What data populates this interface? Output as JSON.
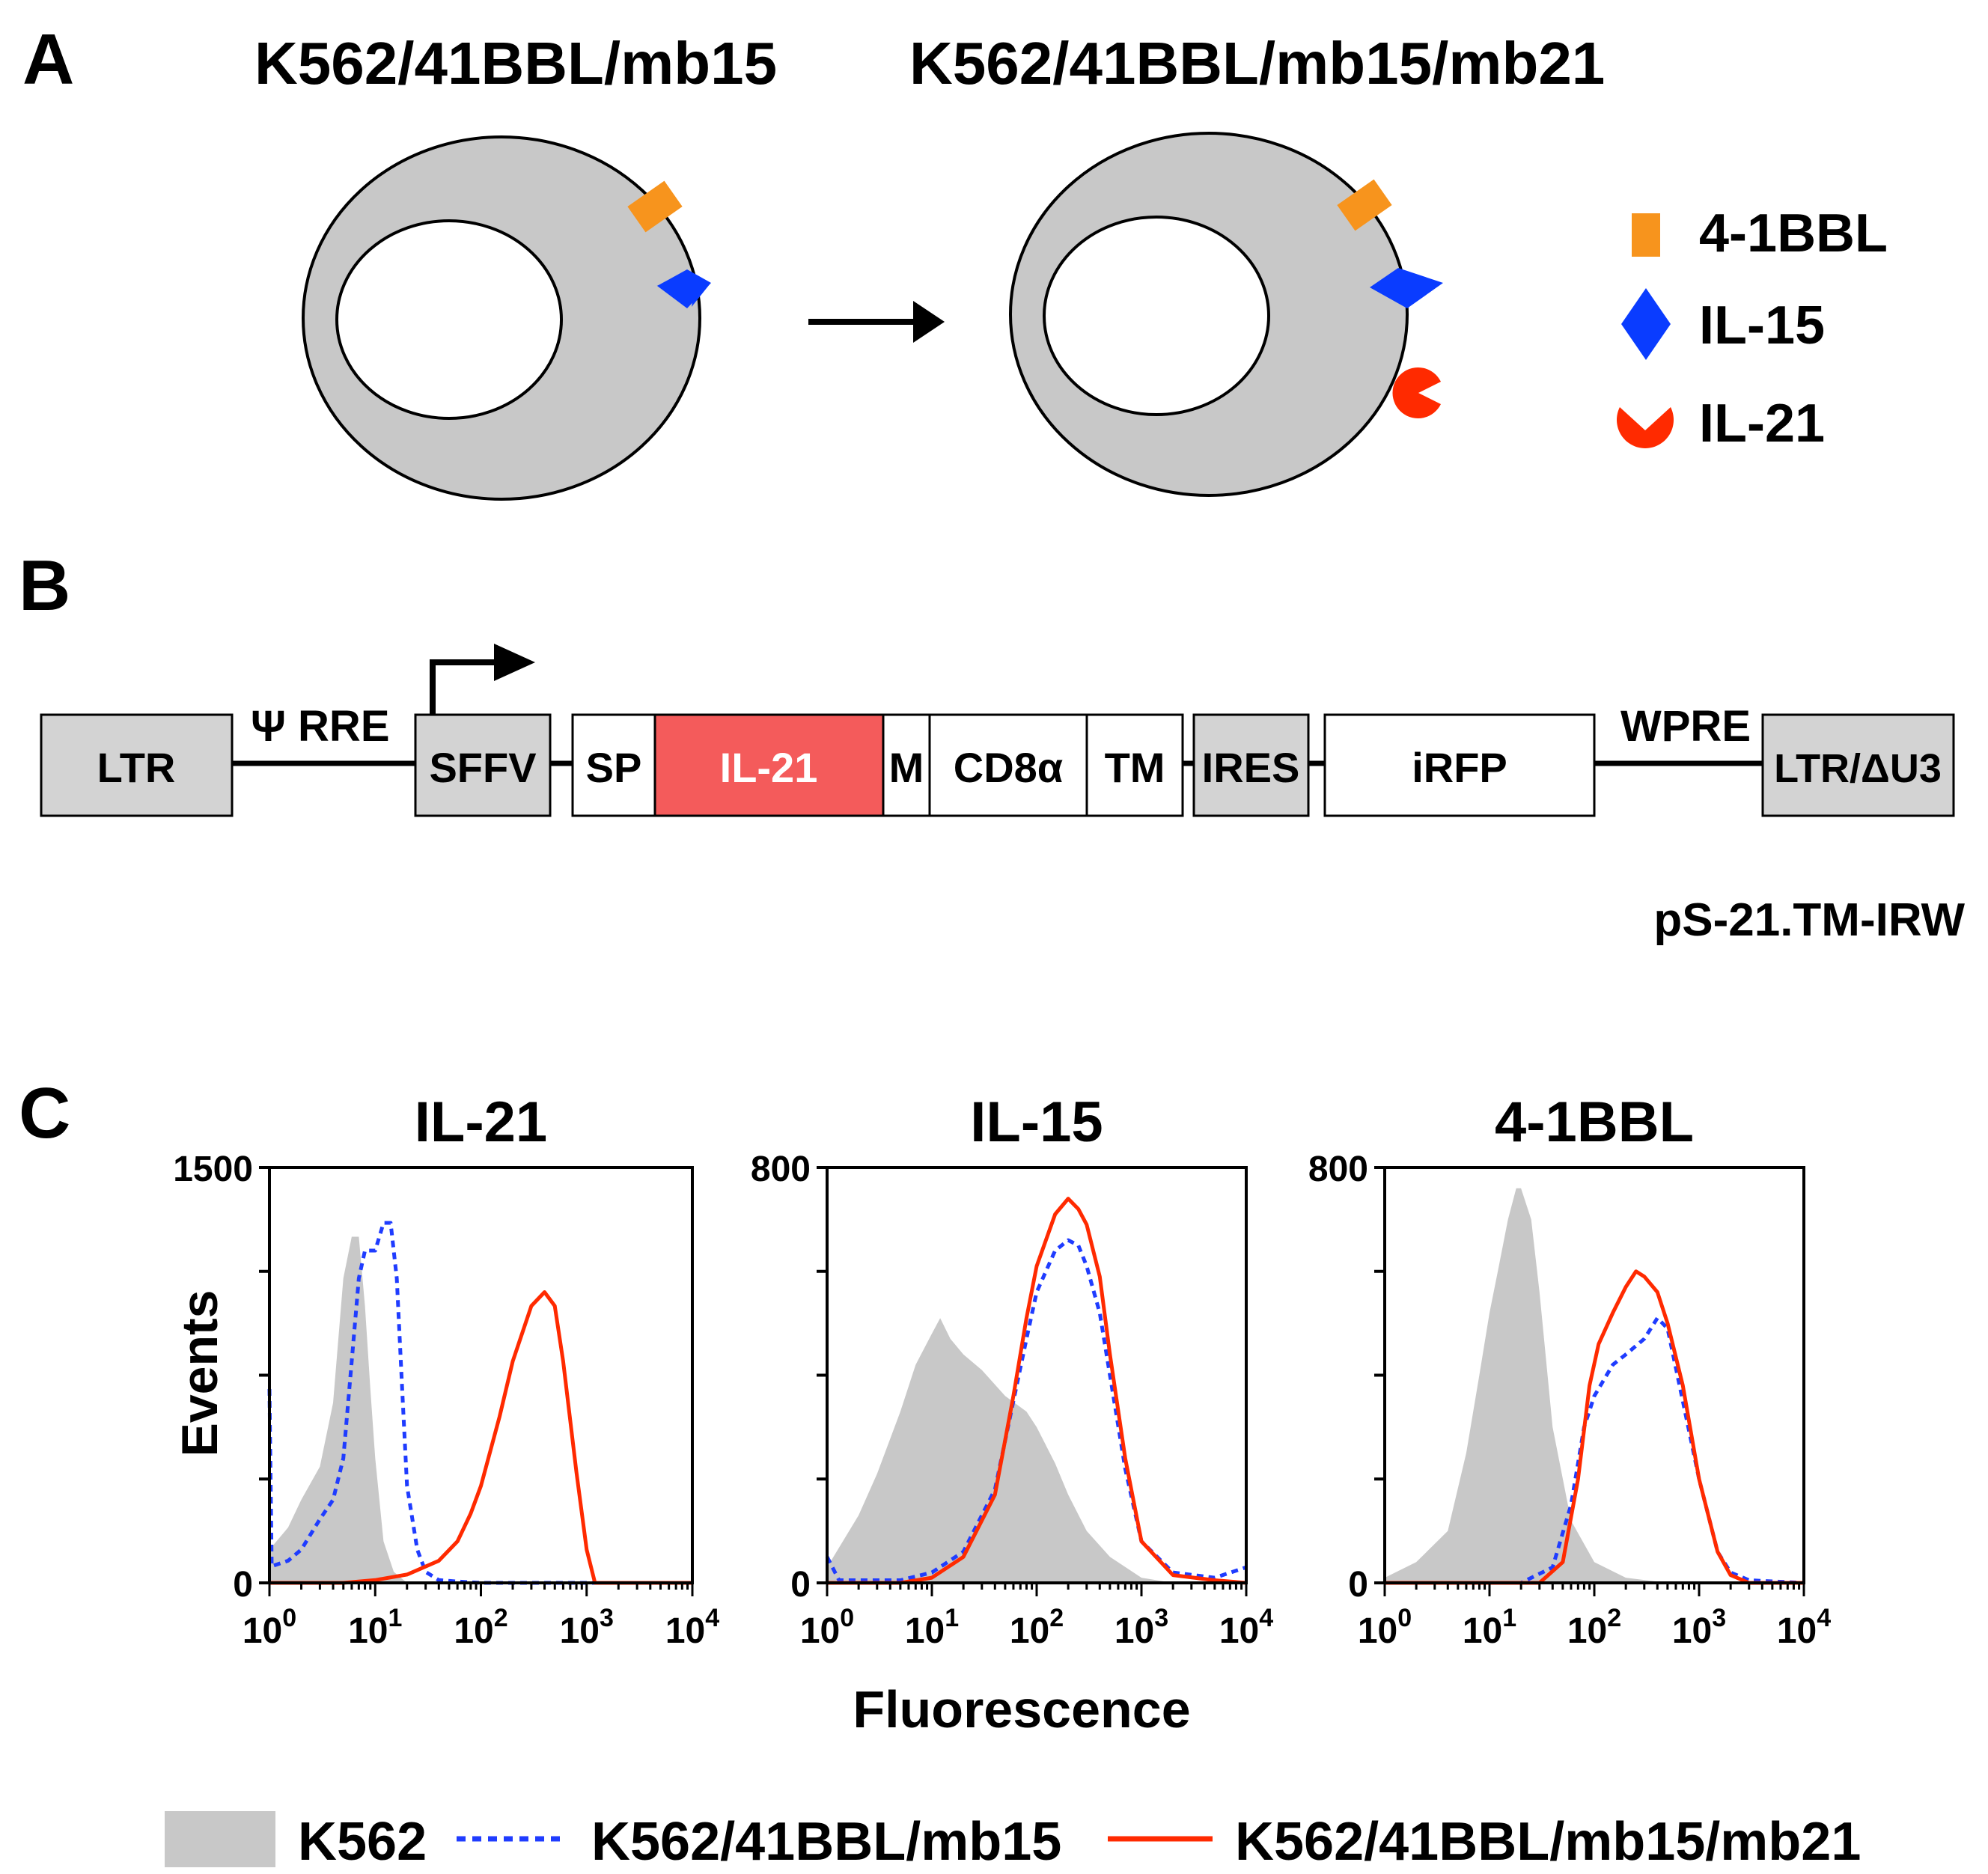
{
  "panel_a": {
    "letter": "A",
    "left_cell_title": "K562/41BBL/mb15",
    "right_cell_title": "K562/41BBL/mb15/mb21",
    "legend": [
      {
        "label": "4-1BBL",
        "color": "#f7941d",
        "shape": "rectangle-icon"
      },
      {
        "label": "IL-15",
        "color": "#0a3cff",
        "shape": "diamond-icon"
      },
      {
        "label": "IL-21",
        "color": "#ff2a00",
        "shape": "pacman-icon"
      }
    ]
  },
  "panel_b": {
    "letter": "B",
    "construct_name": "pS-21.TM-IRW",
    "connectors": {
      "psi_rre": "Ψ  RRE",
      "wpre": "WPRE"
    },
    "elements": [
      {
        "label": "LTR",
        "fill": "#d3d3d3"
      },
      {
        "label": "SFFV",
        "fill": "#d3d3d3"
      },
      {
        "label": "SP",
        "fill": "#ffffff"
      },
      {
        "label": "IL-21",
        "fill": "#f45b5b"
      },
      {
        "label": "M",
        "fill": "#ffffff"
      },
      {
        "label": "CD8α",
        "fill": "#ffffff"
      },
      {
        "label": "TM",
        "fill": "#ffffff"
      },
      {
        "label": "IRES",
        "fill": "#d3d3d3"
      },
      {
        "label": "iRFP",
        "fill": "#ffffff"
      },
      {
        "label": "LTR/ΔU3",
        "fill": "#d3d3d3"
      }
    ]
  },
  "panel_c": {
    "letter": "C",
    "ylabel": "Events",
    "xlabel": "Fluorescence",
    "legend": [
      {
        "label": "K562",
        "style": "filled",
        "color": "#c8c8c8"
      },
      {
        "label": "K562/41BBL/mb15",
        "style": "dotted",
        "color": "#1f3cff"
      },
      {
        "label": "K562/41BBL/mb15/mb21",
        "style": "solid",
        "color": "#ff2a00"
      }
    ]
  },
  "chart_data": [
    {
      "type": "area",
      "title": "IL-21",
      "xscale": "log",
      "xlim": [
        1,
        10000
      ],
      "ylim": [
        0,
        1500
      ],
      "yticks": [
        "0",
        "1500"
      ],
      "xticks": [
        "10^0",
        "10^1",
        "10^2",
        "10^3",
        "10^4"
      ],
      "xlabel": "",
      "ylabel": "Events",
      "series": [
        {
          "name": "K562",
          "style": "filled",
          "points": [
            [
              1,
              120
            ],
            [
              1.5,
              200
            ],
            [
              2,
              300
            ],
            [
              3,
              420
            ],
            [
              4,
              650
            ],
            [
              5,
              1100
            ],
            [
              6,
              1250
            ],
            [
              7,
              1250
            ],
            [
              8,
              1000
            ],
            [
              9,
              700
            ],
            [
              10,
              450
            ],
            [
              12,
              150
            ],
            [
              15,
              40
            ],
            [
              20,
              0
            ]
          ]
        },
        {
          "name": "K562/41BBL/mb15",
          "style": "dotted",
          "points": [
            [
              1,
              700
            ],
            [
              1.05,
              60
            ],
            [
              1.5,
              80
            ],
            [
              2,
              120
            ],
            [
              3,
              230
            ],
            [
              4,
              300
            ],
            [
              5,
              450
            ],
            [
              6,
              800
            ],
            [
              7,
              1100
            ],
            [
              8,
              1200
            ],
            [
              10,
              1200
            ],
            [
              12,
              1300
            ],
            [
              14,
              1300
            ],
            [
              16,
              1100
            ],
            [
              18,
              700
            ],
            [
              20,
              350
            ],
            [
              25,
              120
            ],
            [
              30,
              40
            ],
            [
              40,
              10
            ],
            [
              60,
              5
            ],
            [
              100,
              0
            ],
            [
              1000,
              0
            ],
            [
              10000,
              0
            ]
          ]
        },
        {
          "name": "K562/41BBL/mb15/mb21",
          "style": "solid",
          "points": [
            [
              1,
              0
            ],
            [
              5,
              0
            ],
            [
              10,
              10
            ],
            [
              20,
              30
            ],
            [
              40,
              80
            ],
            [
              60,
              150
            ],
            [
              80,
              250
            ],
            [
              100,
              350
            ],
            [
              150,
              600
            ],
            [
              200,
              800
            ],
            [
              300,
              1000
            ],
            [
              400,
              1050
            ],
            [
              500,
              1000
            ],
            [
              600,
              800
            ],
            [
              800,
              400
            ],
            [
              1000,
              120
            ],
            [
              1200,
              0
            ],
            [
              10000,
              0
            ]
          ]
        }
      ]
    },
    {
      "type": "area",
      "title": "IL-15",
      "xscale": "log",
      "xlim": [
        1,
        10000
      ],
      "ylim": [
        0,
        800
      ],
      "yticks": [
        "0",
        "800"
      ],
      "xticks": [
        "10^0",
        "10^1",
        "10^2",
        "10^3",
        "10^4"
      ],
      "xlabel": "Fluorescence",
      "ylabel": "",
      "series": [
        {
          "name": "K562",
          "style": "filled",
          "points": [
            [
              1,
              30
            ],
            [
              2,
              130
            ],
            [
              3,
              210
            ],
            [
              5,
              330
            ],
            [
              7,
              420
            ],
            [
              10,
              480
            ],
            [
              12,
              510
            ],
            [
              15,
              470
            ],
            [
              20,
              440
            ],
            [
              30,
              410
            ],
            [
              50,
              360
            ],
            [
              80,
              330
            ],
            [
              100,
              300
            ],
            [
              150,
              230
            ],
            [
              200,
              170
            ],
            [
              300,
              100
            ],
            [
              500,
              50
            ],
            [
              1000,
              10
            ],
            [
              2000,
              0
            ],
            [
              10000,
              0
            ]
          ]
        },
        {
          "name": "K562/41BBL/mb15",
          "style": "dotted",
          "points": [
            [
              1,
              50
            ],
            [
              1.3,
              5
            ],
            [
              5,
              5
            ],
            [
              10,
              20
            ],
            [
              20,
              60
            ],
            [
              40,
              180
            ],
            [
              60,
              350
            ],
            [
              80,
              470
            ],
            [
              100,
              560
            ],
            [
              150,
              640
            ],
            [
              200,
              660
            ],
            [
              250,
              650
            ],
            [
              300,
              610
            ],
            [
              400,
              520
            ],
            [
              500,
              400
            ],
            [
              700,
              220
            ],
            [
              1000,
              80
            ],
            [
              2000,
              20
            ],
            [
              5000,
              10
            ],
            [
              10000,
              30
            ]
          ]
        },
        {
          "name": "K562/41BBL/mb15/mb21",
          "style": "solid",
          "points": [
            [
              1,
              0
            ],
            [
              5,
              0
            ],
            [
              10,
              10
            ],
            [
              20,
              50
            ],
            [
              40,
              170
            ],
            [
              60,
              360
            ],
            [
              80,
              510
            ],
            [
              100,
              610
            ],
            [
              150,
              710
            ],
            [
              200,
              740
            ],
            [
              250,
              720
            ],
            [
              300,
              690
            ],
            [
              400,
              590
            ],
            [
              500,
              440
            ],
            [
              700,
              240
            ],
            [
              1000,
              80
            ],
            [
              2000,
              15
            ],
            [
              5000,
              5
            ],
            [
              10000,
              0
            ]
          ]
        }
      ]
    },
    {
      "type": "area",
      "title": "4-1BBL",
      "xscale": "log",
      "xlim": [
        1,
        10000
      ],
      "ylim": [
        0,
        800
      ],
      "yticks": [
        "0",
        "800"
      ],
      "xticks": [
        "10^0",
        "10^1",
        "10^2",
        "10^3",
        "10^4"
      ],
      "xlabel": "",
      "ylabel": "",
      "series": [
        {
          "name": "K562",
          "style": "filled",
          "points": [
            [
              1,
              10
            ],
            [
              2,
              40
            ],
            [
              4,
              100
            ],
            [
              6,
              250
            ],
            [
              8,
              400
            ],
            [
              10,
              520
            ],
            [
              12,
              600
            ],
            [
              15,
              700
            ],
            [
              18,
              760
            ],
            [
              20,
              760
            ],
            [
              25,
              700
            ],
            [
              30,
              560
            ],
            [
              40,
              300
            ],
            [
              60,
              120
            ],
            [
              100,
              40
            ],
            [
              200,
              10
            ],
            [
              500,
              0
            ],
            [
              10000,
              0
            ]
          ]
        },
        {
          "name": "K562/41BBL/mb15",
          "style": "dotted",
          "points": [
            [
              1,
              0
            ],
            [
              20,
              0
            ],
            [
              40,
              30
            ],
            [
              60,
              150
            ],
            [
              80,
              300
            ],
            [
              100,
              360
            ],
            [
              150,
              420
            ],
            [
              200,
              440
            ],
            [
              300,
              470
            ],
            [
              400,
              510
            ],
            [
              500,
              490
            ],
            [
              700,
              350
            ],
            [
              1000,
              200
            ],
            [
              1500,
              60
            ],
            [
              2000,
              20
            ],
            [
              3000,
              5
            ],
            [
              10000,
              0
            ]
          ]
        },
        {
          "name": "K562/41BBL/mb15/mb21",
          "style": "solid",
          "points": [
            [
              1,
              0
            ],
            [
              30,
              0
            ],
            [
              50,
              40
            ],
            [
              70,
              200
            ],
            [
              90,
              380
            ],
            [
              110,
              460
            ],
            [
              150,
              520
            ],
            [
              200,
              570
            ],
            [
              250,
              600
            ],
            [
              300,
              590
            ],
            [
              400,
              560
            ],
            [
              500,
              500
            ],
            [
              700,
              380
            ],
            [
              1000,
              200
            ],
            [
              1500,
              60
            ],
            [
              2000,
              15
            ],
            [
              3000,
              0
            ],
            [
              10000,
              0
            ]
          ]
        }
      ]
    }
  ]
}
